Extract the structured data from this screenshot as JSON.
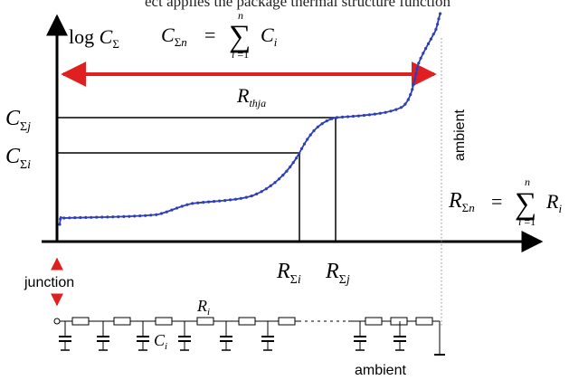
{
  "top_caption": "ect applies the package thermal structure function",
  "axis_y_label": "log CΣ",
  "formula_cumulative_capacitance": "CΣn = Σ Ci , i=1..n",
  "formula_cumulative_resistance": "RΣn = Σ Ri , i=1..n",
  "labels": {
    "c_sigma_j": "CΣj",
    "c_sigma_i": "CΣi",
    "r_thja": "Rthja",
    "r_sigma_i": "RΣi",
    "r_sigma_j": "RΣj",
    "ambient_vertical": "ambient",
    "junction": "junction",
    "ri_label": "Ri",
    "ci_label": "Ci",
    "ambient_bottom": "ambient"
  },
  "colors": {
    "curve": "#2d3fb6",
    "arrow_red": "#e02020",
    "ink": "#000000",
    "dotted": "#8a8a8a"
  }
}
